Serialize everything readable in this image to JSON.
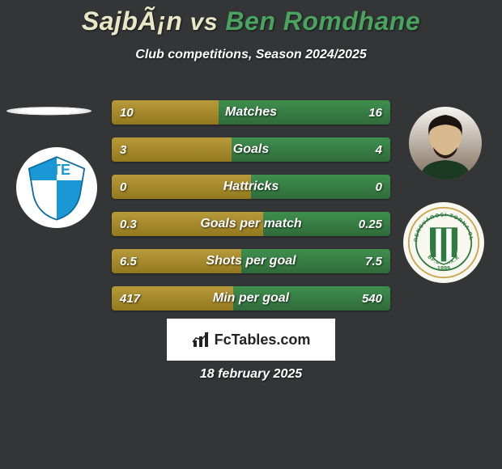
{
  "title": {
    "player1": "SajbÃ¡n",
    "vs": "vs",
    "player2": "Ben Romdhane",
    "color_p1": "#e9e7c5",
    "color_vs": "#e9e7c5",
    "color_p2": "#4aa35f"
  },
  "subtitle": "Club competitions, Season 2024/2025",
  "colors": {
    "background": "#333536",
    "text": "#ffffff",
    "bar_left": "#b79a3a",
    "bar_right": "#3f8f4e",
    "bar_left_grad_dark": "#93781e",
    "bar_right_grad_dark": "#2f6b3a"
  },
  "club_left": {
    "name": "ZTE",
    "primary": "#1a97d5",
    "secondary": "#ffffff"
  },
  "club_right": {
    "name": "Ferencvárosi TC",
    "primary": "#2e7a3f",
    "secondary": "#ffffff",
    "ring": "#c9a24a",
    "founded": "1899",
    "district": "BP.EST.IX.K"
  },
  "stats": [
    {
      "label": "Matches",
      "left_val": "10",
      "right_val": "16",
      "left_pct": 38.5,
      "right_pct": 61.5
    },
    {
      "label": "Goals",
      "left_val": "3",
      "right_val": "4",
      "left_pct": 42.9,
      "right_pct": 57.1
    },
    {
      "label": "Hattricks",
      "left_val": "0",
      "right_val": "0",
      "left_pct": 50.0,
      "right_pct": 50.0
    },
    {
      "label": "Goals per match",
      "left_val": "0.3",
      "right_val": "0.25",
      "left_pct": 54.5,
      "right_pct": 45.5
    },
    {
      "label": "Shots per goal",
      "left_val": "6.5",
      "right_val": "7.5",
      "left_pct": 46.4,
      "right_pct": 53.6
    },
    {
      "label": "Min per goal",
      "left_val": "417",
      "right_val": "540",
      "left_pct": 43.6,
      "right_pct": 56.4
    }
  ],
  "footer": {
    "brand": "FcTables.com",
    "date": "18 february 2025"
  }
}
